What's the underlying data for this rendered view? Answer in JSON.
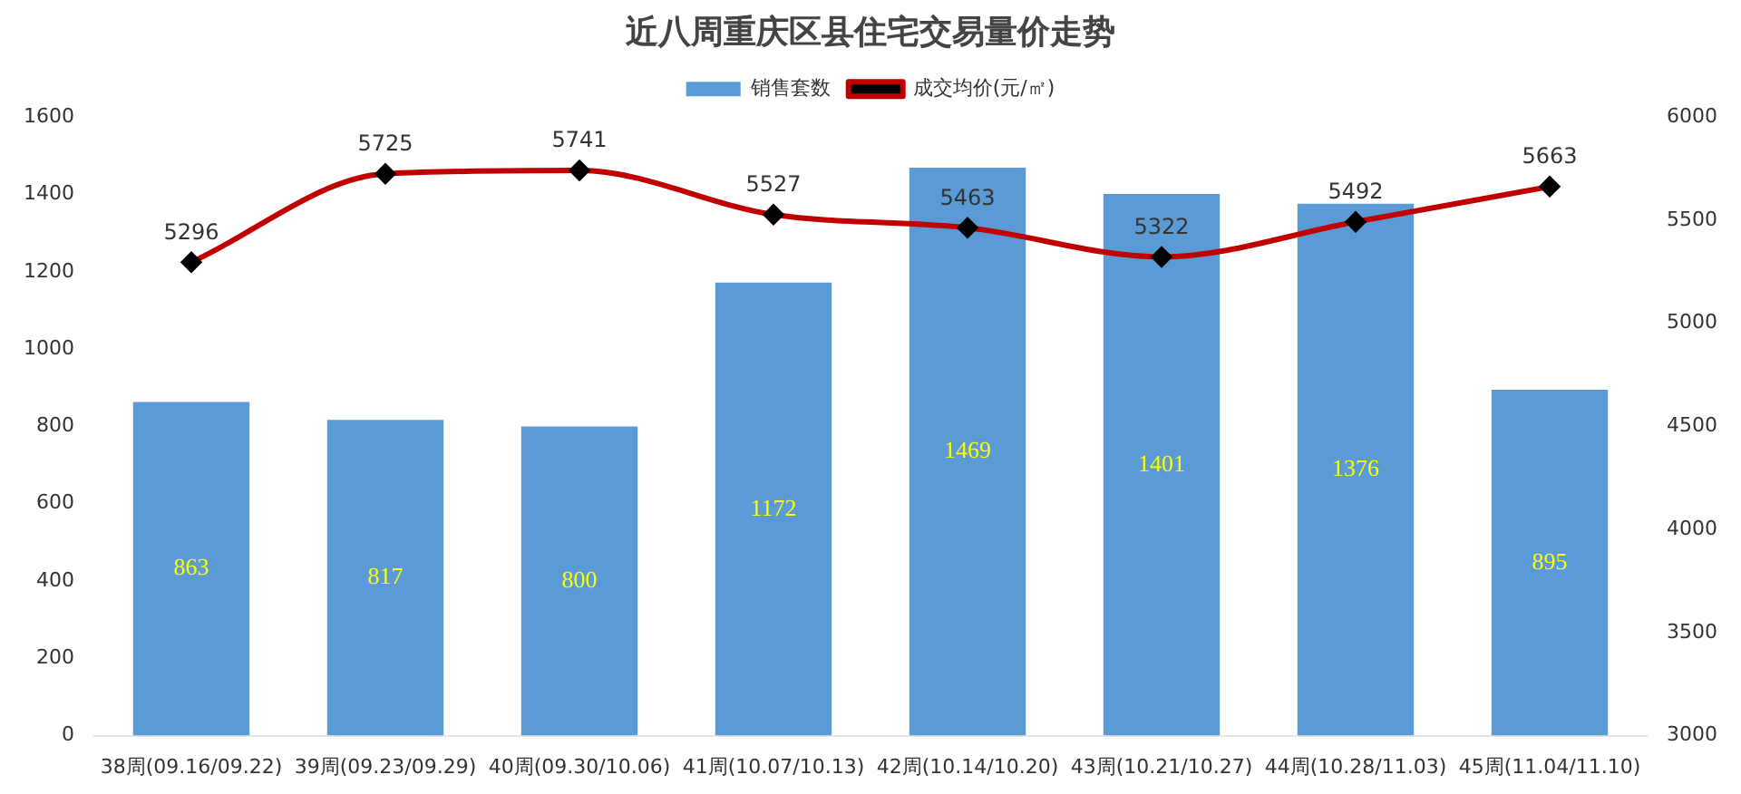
{
  "chart_data": {
    "type": "bar",
    "title": "近八周重庆区县住宅交易量价走势",
    "categories": [
      "38周(09.16/09.22)",
      "39周(09.23/09.29)",
      "40周(09.30/10.06)",
      "41周(10.07/10.13)",
      "42周(10.14/10.20)",
      "43周(10.21/10.27)",
      "44周(10.28/11.03)",
      "45周(11.04/11.10)"
    ],
    "series": [
      {
        "name": "销售套数",
        "color": "#5b9bd5",
        "values": [
          863,
          817,
          800,
          1172,
          1469,
          1401,
          1376,
          895
        ]
      },
      {
        "name": "成交均价(元/㎡)",
        "type": "line",
        "axis": "y2",
        "color": "#c00000",
        "marker": "diamond",
        "values": [
          5296,
          5725,
          5741,
          5527,
          5463,
          5322,
          5492,
          5663
        ]
      }
    ],
    "ylim": [
      0,
      1600
    ],
    "yticks": [
      0,
      200,
      400,
      600,
      800,
      1000,
      1200,
      1400,
      1600
    ],
    "y2lim": [
      3000,
      6000
    ],
    "y2ticks": [
      3000,
      3500,
      4000,
      4500,
      5000,
      5500,
      6000
    ],
    "grid": false,
    "legend": "top",
    "data_labels": true
  }
}
